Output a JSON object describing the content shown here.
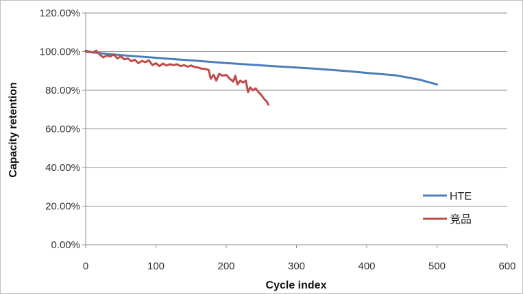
{
  "chart_data": {
    "type": "line",
    "title": "",
    "xlabel": "Cycle index",
    "ylabel": "Capacity retention",
    "xlim": [
      0,
      600
    ],
    "ylim": [
      0,
      1.2
    ],
    "x_ticks": [
      "0",
      "100",
      "200",
      "300",
      "400",
      "500",
      "600"
    ],
    "y_ticks": [
      "0.00%",
      "20.00%",
      "40.00%",
      "60.00%",
      "80.00%",
      "100.00%",
      "120.00%"
    ],
    "grid": "horizontal",
    "legend_position": "bottom-right",
    "colors": {
      "HTE": "#4a7ebb",
      "竞品": "#be4b48"
    },
    "series": [
      {
        "name": "HTE",
        "points": [
          [
            0,
            1.0
          ],
          [
            25,
            0.99
          ],
          [
            50,
            0.982
          ],
          [
            75,
            0.975
          ],
          [
            100,
            0.968
          ],
          [
            125,
            0.961
          ],
          [
            150,
            0.955
          ],
          [
            175,
            0.948
          ],
          [
            200,
            0.941
          ],
          [
            225,
            0.935
          ],
          [
            250,
            0.929
          ],
          [
            275,
            0.923
          ],
          [
            300,
            0.918
          ],
          [
            325,
            0.912
          ],
          [
            350,
            0.905
          ],
          [
            375,
            0.898
          ],
          [
            400,
            0.89
          ],
          [
            425,
            0.882
          ],
          [
            440,
            0.878
          ],
          [
            460,
            0.865
          ],
          [
            475,
            0.855
          ],
          [
            490,
            0.84
          ],
          [
            500,
            0.83
          ]
        ]
      },
      {
        "name": "竞品",
        "points": [
          [
            0,
            1.005
          ],
          [
            5,
            1.0
          ],
          [
            10,
            0.995
          ],
          [
            15,
            1.005
          ],
          [
            20,
            0.985
          ],
          [
            25,
            0.97
          ],
          [
            30,
            0.98
          ],
          [
            35,
            0.975
          ],
          [
            40,
            0.985
          ],
          [
            45,
            0.965
          ],
          [
            50,
            0.975
          ],
          [
            55,
            0.96
          ],
          [
            60,
            0.965
          ],
          [
            65,
            0.95
          ],
          [
            70,
            0.958
          ],
          [
            75,
            0.94
          ],
          [
            80,
            0.952
          ],
          [
            85,
            0.945
          ],
          [
            90,
            0.955
          ],
          [
            95,
            0.93
          ],
          [
            100,
            0.94
          ],
          [
            105,
            0.925
          ],
          [
            110,
            0.938
          ],
          [
            115,
            0.928
          ],
          [
            120,
            0.935
          ],
          [
            125,
            0.93
          ],
          [
            130,
            0.935
          ],
          [
            135,
            0.925
          ],
          [
            140,
            0.93
          ],
          [
            145,
            0.922
          ],
          [
            150,
            0.928
          ],
          [
            155,
            0.92
          ],
          [
            160,
            0.918
          ],
          [
            165,
            0.912
          ],
          [
            170,
            0.91
          ],
          [
            175,
            0.905
          ],
          [
            178,
            0.86
          ],
          [
            182,
            0.88
          ],
          [
            186,
            0.85
          ],
          [
            190,
            0.885
          ],
          [
            195,
            0.875
          ],
          [
            200,
            0.88
          ],
          [
            205,
            0.86
          ],
          [
            210,
            0.845
          ],
          [
            213,
            0.875
          ],
          [
            216,
            0.83
          ],
          [
            220,
            0.85
          ],
          [
            224,
            0.84
          ],
          [
            228,
            0.85
          ],
          [
            231,
            0.79
          ],
          [
            234,
            0.815
          ],
          [
            238,
            0.8
          ],
          [
            242,
            0.81
          ],
          [
            246,
            0.79
          ],
          [
            250,
            0.775
          ],
          [
            254,
            0.755
          ],
          [
            258,
            0.74
          ],
          [
            260,
            0.725
          ]
        ]
      }
    ]
  }
}
